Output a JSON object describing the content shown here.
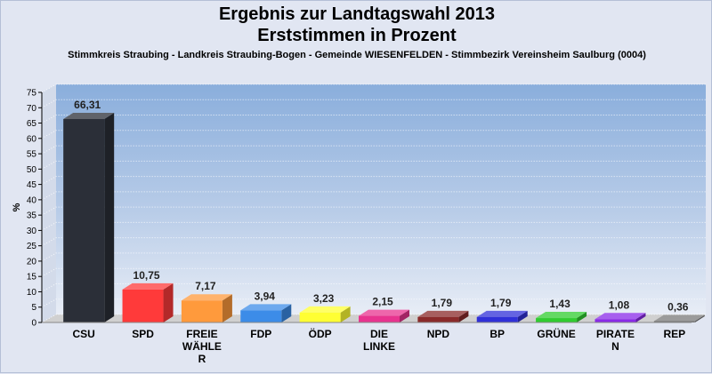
{
  "title": "Ergebnis zur Landtagswahl 2013",
  "subtitle": "Erststimmen in Prozent",
  "location": "Stimmkreis Straubing - Landkreis Straubing-Bogen - Gemeinde WIESENFELDEN - Stimmbezirk Vereinsheim Saulburg (0004)",
  "chart_data": {
    "type": "bar",
    "title": "Ergebnis zur Landtagswahl 2013",
    "subtitle": "Erststimmen in Prozent",
    "ylabel": "%",
    "xlabel": "",
    "ylim": [
      0,
      75
    ],
    "ytick_step": 5,
    "grid": true,
    "categories": [
      "CSU",
      "SPD",
      "FREIE WÄHLER",
      "FDP",
      "ÖDP",
      "DIE LINKE",
      "NPD",
      "BP",
      "GRÜNE",
      "PIRATEN",
      "REP"
    ],
    "tick_labels": [
      [
        "CSU"
      ],
      [
        "SPD"
      ],
      [
        "FREIE",
        "WÄHLE",
        "R"
      ],
      [
        "FDP"
      ],
      [
        "ÖDP"
      ],
      [
        "DIE",
        "LINKE"
      ],
      [
        "NPD"
      ],
      [
        "BP"
      ],
      [
        "GRÜNE"
      ],
      [
        "PIRATE",
        "N"
      ],
      [
        "REP"
      ]
    ],
    "values": [
      66.31,
      10.75,
      7.17,
      3.94,
      3.23,
      2.15,
      1.79,
      1.79,
      1.43,
      1.08,
      0.36
    ],
    "value_labels": [
      "66,31",
      "10,75",
      "7,17",
      "3,94",
      "3,23",
      "2,15",
      "1,79",
      "1,79",
      "1,43",
      "1,08",
      "0,36"
    ],
    "colors": [
      "#2b2f38",
      "#ff3a3a",
      "#ff9a3c",
      "#3c8ce8",
      "#ffff33",
      "#e8338f",
      "#8a2a2a",
      "#3030d8",
      "#30cc30",
      "#8a2ae8",
      "#7a7a7a"
    ]
  }
}
